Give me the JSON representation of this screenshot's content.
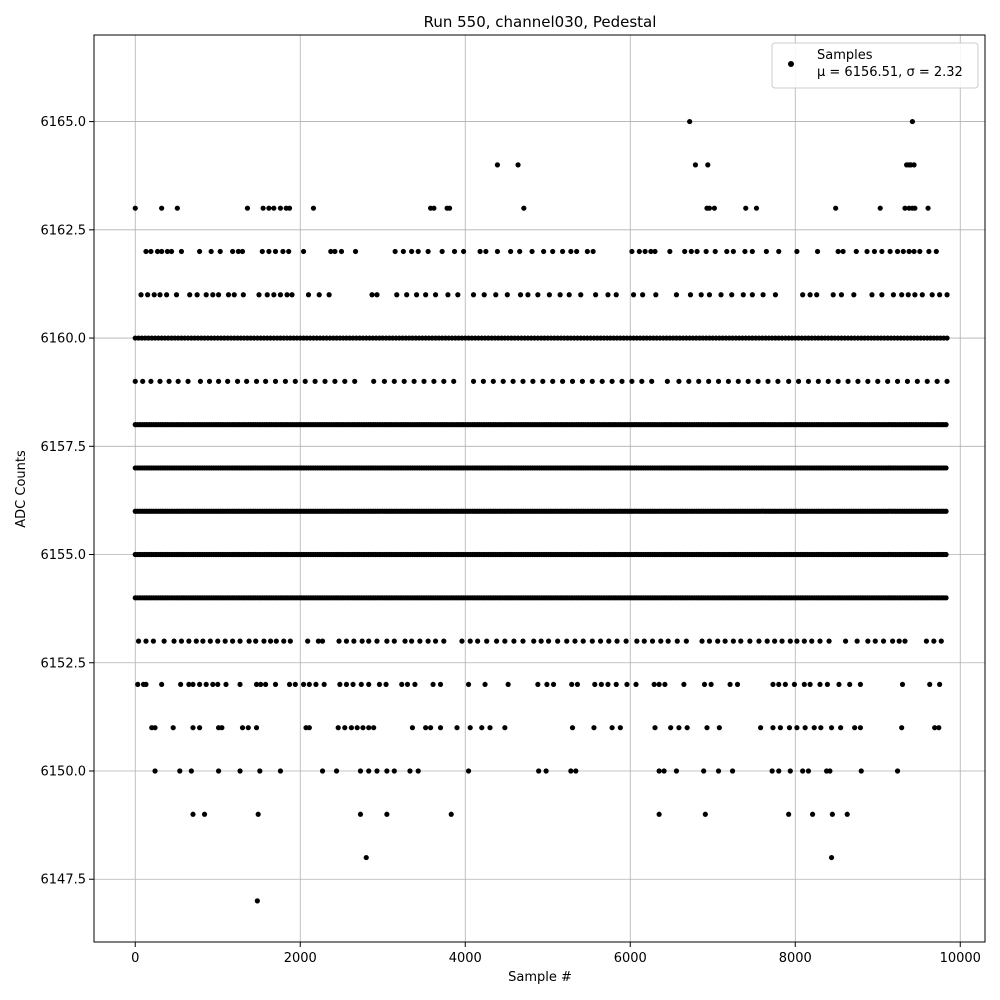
{
  "chart_data": {
    "type": "scatter",
    "title": "Run 550, channel030, Pedestal",
    "xlabel": "Sample #",
    "ylabel": "ADC Counts",
    "xlim": [
      -500,
      10300
    ],
    "ylim": [
      6146.05,
      6167.0
    ],
    "x_ticks": [
      0,
      2000,
      4000,
      6000,
      8000,
      10000
    ],
    "x_tick_labels": [
      "0",
      "2000",
      "4000",
      "6000",
      "8000",
      "10000"
    ],
    "y_ticks": [
      6147.5,
      6150.0,
      6152.5,
      6155.0,
      6157.5,
      6160.0,
      6162.5,
      6165.0
    ],
    "y_tick_labels": [
      "6147.5",
      "6150.0",
      "6152.5",
      "6155.0",
      "6157.5",
      "6160.0",
      "6162.5",
      "6165.0"
    ],
    "grid": true,
    "legend_position": "top-right",
    "marker_color": "#000000",
    "series": [
      {
        "name": "Samples",
        "stats_label": "μ = 6156.51, σ = 2.32",
        "levels": [
          {
            "y": 6165,
            "x": [
              6720,
              9420
            ]
          },
          {
            "y": 6164,
            "x": [
              4390,
              4640,
              6790,
              6940,
              9350,
              9380,
              9400,
              9440
            ]
          },
          {
            "y": 6163,
            "x": [
              0,
              320,
              510,
              1360,
              1550,
              1620,
              1680,
              1760,
              1830,
              1870,
              2160,
              3580,
              3620,
              3780,
              3810,
              4710,
              6930,
              6960,
              7020,
              7400,
              7530,
              8490,
              9030,
              9330,
              9380,
              9420,
              9450,
              9610
            ]
          },
          {
            "y": 6162,
            "x": [
              130,
              190,
              270,
              320,
              390,
              440,
              560,
              780,
              920,
              1030,
              1180,
              1250,
              1300,
              1540,
              1620,
              1700,
              1790,
              1860,
              2040,
              2370,
              2420,
              2500,
              2670,
              3150,
              3250,
              3350,
              3430,
              3550,
              3720,
              3870,
              3980,
              4180,
              4250,
              4390,
              4550,
              4660,
              4810,
              4950,
              5060,
              5180,
              5280,
              5350,
              5480,
              5550,
              6020,
              6110,
              6180,
              6250,
              6300,
              6480,
              6660,
              6740,
              6810,
              6920,
              7030,
              7170,
              7250,
              7390,
              7480,
              7650,
              7800,
              8020,
              8270,
              8520,
              8580,
              8740,
              8870,
              8960,
              9050,
              9150,
              9240,
              9310,
              9380,
              9440,
              9510,
              9620,
              9710
            ]
          },
          {
            "y": 6161,
            "x": [
              70,
              150,
              230,
              300,
              380,
              500,
              660,
              750,
              860,
              940,
              1010,
              1130,
              1200,
              1310,
              1500,
              1600,
              1680,
              1760,
              1840,
              1900,
              2100,
              2230,
              2350,
              2870,
              2930,
              3170,
              3290,
              3410,
              3520,
              3640,
              3790,
              3910,
              4100,
              4230,
              4370,
              4510,
              4670,
              4760,
              4880,
              5020,
              5150,
              5260,
              5400,
              5580,
              5730,
              5830,
              6040,
              6150,
              6310,
              6560,
              6730,
              6860,
              6960,
              7100,
              7230,
              7370,
              7480,
              7610,
              7760,
              8090,
              8180,
              8260,
              8460,
              8560,
              8710,
              8930,
              9050,
              9190,
              9290,
              9370,
              9450,
              9540,
              9660,
              9750,
              9840
            ]
          },
          {
            "y": 6160,
            "levels_fill": "dense",
            "x": [
              0,
              120,
              280,
              420,
              540,
              720,
              880,
              1050,
              1160,
              1320,
              1430,
              1570,
              1700,
              1810,
              1940,
              2080,
              2200,
              2300,
              2450,
              2580,
              2700,
              2880,
              3010,
              3130,
              3270,
              3410,
              3560,
              3690,
              3820,
              4070,
              4230,
              4360,
              4500,
              4640,
              4790,
              4950,
              5100,
              5240,
              5380,
              5520,
              5670,
              5820,
              5970,
              6110,
              6240,
              6380,
              6530,
              6700,
              6850,
              6990,
              7130,
              7280,
              7420,
              7570,
              7710,
              8040,
              8190,
              8330,
              8470,
              8620,
              8760,
              8900,
              9040,
              9180,
              9310,
              9450,
              9580,
              9720,
              9840
            ]
          },
          {
            "y": 6159,
            "x": [
              0,
              90,
              190,
              300,
              410,
              520,
              640,
              790,
              900,
              1010,
              1120,
              1240,
              1350,
              1470,
              1580,
              1700,
              1820,
              1940,
              2060,
              2180,
              2300,
              2420,
              2540,
              2660,
              2890,
              3020,
              3140,
              3260,
              3380,
              3500,
              3620,
              3740,
              3860,
              4100,
              4220,
              4340,
              4460,
              4580,
              4700,
              4820,
              4940,
              5060,
              5180,
              5300,
              5420,
              5540,
              5660,
              5780,
              5900,
              6020,
              6140,
              6260,
              6450,
              6590,
              6710,
              6830,
              6950,
              7070,
              7190,
              7310,
              7430,
              7550,
              7670,
              7790,
              7920,
              8040,
              8160,
              8280,
              8400,
              8520,
              8640,
              8760,
              8880,
              9000,
              9120,
              9240,
              9360,
              9480,
              9600,
              9720,
              9840
            ]
          },
          {
            "y": 6158,
            "dense": true,
            "x": [
              0,
              9840
            ]
          },
          {
            "y": 6157,
            "dense": true,
            "x": [
              0,
              9840
            ]
          },
          {
            "y": 6156,
            "dense": true,
            "x": [
              0,
              9840
            ]
          },
          {
            "y": 6155,
            "dense": true,
            "x": [
              0,
              9840
            ]
          },
          {
            "y": 6154,
            "dense": true,
            "x": [
              0,
              9840
            ]
          },
          {
            "y": 6153,
            "x": [
              40,
              130,
              220,
              350,
              470,
              560,
              650,
              740,
              820,
              910,
              1000,
              1090,
              1180,
              1270,
              1380,
              1460,
              1560,
              1640,
              1710,
              1800,
              1880,
              2090,
              2220,
              2270,
              2470,
              2560,
              2650,
              2750,
              2830,
              2930,
              3050,
              3140,
              3270,
              3350,
              3450,
              3550,
              3640,
              3740,
              3960,
              4060,
              4150,
              4260,
              4380,
              4480,
              4590,
              4700,
              4830,
              4920,
              5010,
              5120,
              5230,
              5330,
              5430,
              5540,
              5640,
              5740,
              5840,
              5950,
              6080,
              6170,
              6270,
              6370,
              6460,
              6570,
              6680,
              6870,
              6960,
              7060,
              7150,
              7250,
              7340,
              7450,
              7560,
              7660,
              7750,
              7840,
              7940,
              8020,
              8110,
              8200,
              8300,
              8410,
              8610,
              8750,
              8880,
              8970,
              9070,
              9180,
              9260,
              9330,
              9590,
              9680,
              9770
            ]
          },
          {
            "y": 6152,
            "x": [
              30,
              100,
              130,
              320,
              550,
              650,
              700,
              780,
              860,
              940,
              1000,
              1100,
              1270,
              1470,
              1520,
              1580,
              1700,
              1870,
              1940,
              2040,
              2110,
              2190,
              2290,
              2480,
              2560,
              2640,
              2740,
              2830,
              2960,
              3040,
              3230,
              3300,
              3390,
              3610,
              3700,
              4040,
              4240,
              4520,
              4880,
              4990,
              5070,
              5290,
              5360,
              5570,
              5650,
              5730,
              5830,
              5960,
              6070,
              6290,
              6350,
              6420,
              6650,
              6900,
              6980,
              7210,
              7300,
              7730,
              7800,
              7880,
              7990,
              8110,
              8180,
              8300,
              8390,
              8530,
              8660,
              8790,
              9300,
              9630,
              9750
            ]
          },
          {
            "y": 6151,
            "x": [
              200,
              240,
              460,
              700,
              780,
              1010,
              1050,
              1300,
              1370,
              1470,
              2070,
              2110,
              2460,
              2540,
              2620,
              2690,
              2760,
              2830,
              2890,
              3360,
              3520,
              3580,
              3700,
              3900,
              4060,
              4200,
              4300,
              4480,
              5300,
              5560,
              5780,
              5880,
              6300,
              6490,
              6590,
              6690,
              6930,
              7080,
              7580,
              7730,
              7820,
              7930,
              8020,
              8120,
              8230,
              8310,
              8440,
              8550,
              8720,
              8790,
              9290,
              9690,
              9740
            ]
          },
          {
            "y": 6150,
            "x": [
              240,
              540,
              680,
              1010,
              1270,
              1510,
              1760,
              2270,
              2440,
              2730,
              2830,
              2930,
              3050,
              3140,
              3330,
              3430,
              4040,
              4890,
              4980,
              5280,
              5340,
              6350,
              6410,
              6560,
              6890,
              7070,
              7240,
              7720,
              7800,
              7940,
              8090,
              8160,
              8380,
              8420,
              8800,
              9240
            ]
          },
          {
            "y": 6149,
            "x": [
              700,
              840,
              1490,
              2730,
              3050,
              3830,
              6350,
              6910,
              7920,
              8210,
              8450,
              8630
            ]
          },
          {
            "y": 6148,
            "x": [
              2800,
              8440
            ]
          },
          {
            "y": 6147,
            "x": [
              1480
            ]
          }
        ]
      }
    ]
  }
}
